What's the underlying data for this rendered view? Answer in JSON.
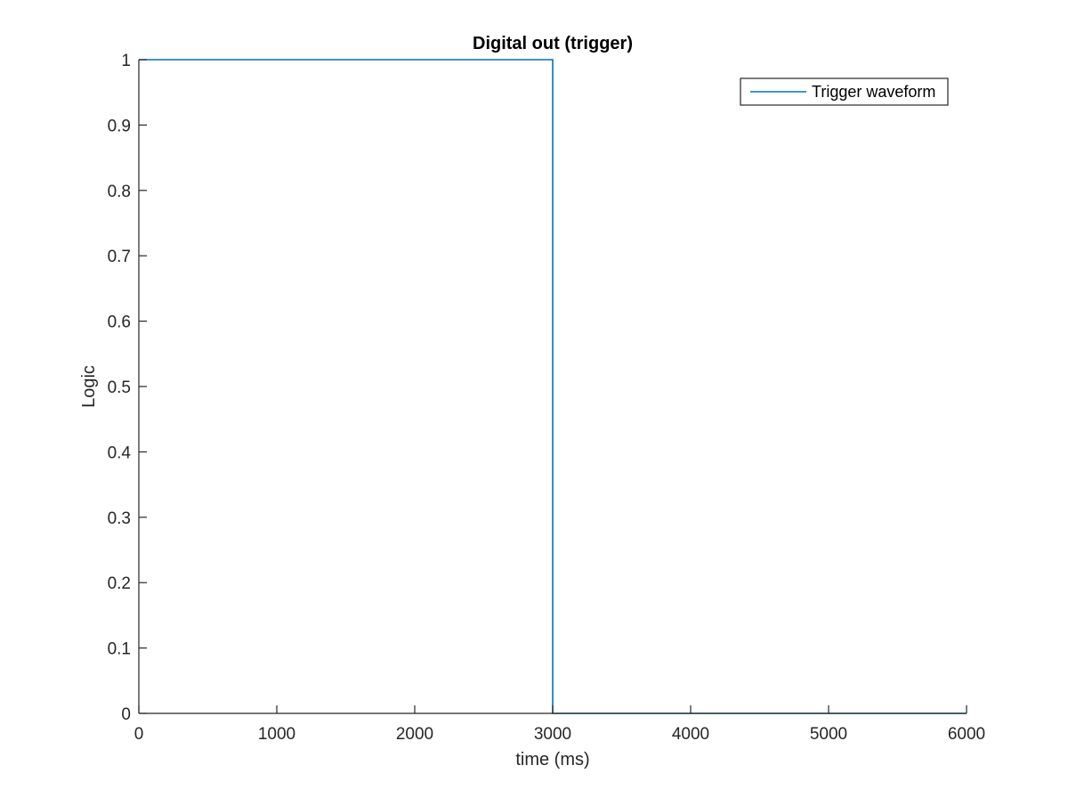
{
  "chart_data": {
    "type": "line",
    "title": "Digital out (trigger)",
    "xlabel": "time (ms)",
    "ylabel": "Logic",
    "xlim": [
      0,
      6000
    ],
    "ylim": [
      0,
      1
    ],
    "xticks": [
      0,
      1000,
      2000,
      3000,
      4000,
      5000,
      6000
    ],
    "xtick_labels": [
      "0",
      "1000",
      "2000",
      "3000",
      "4000",
      "5000",
      "6000"
    ],
    "yticks": [
      0,
      0.1,
      0.2,
      0.3,
      0.4,
      0.5,
      0.6,
      0.7,
      0.8,
      0.9,
      1
    ],
    "ytick_labels": [
      "0",
      "0.1",
      "0.2",
      "0.3",
      "0.4",
      "0.5",
      "0.6",
      "0.7",
      "0.8",
      "0.9",
      "1"
    ],
    "grid": false,
    "legend_position": "top-right",
    "series": [
      {
        "name": "Trigger waveform",
        "color": "#0072BD",
        "x": [
          0,
          3000,
          3000,
          6000
        ],
        "y": [
          1,
          1,
          0,
          0
        ]
      }
    ]
  }
}
